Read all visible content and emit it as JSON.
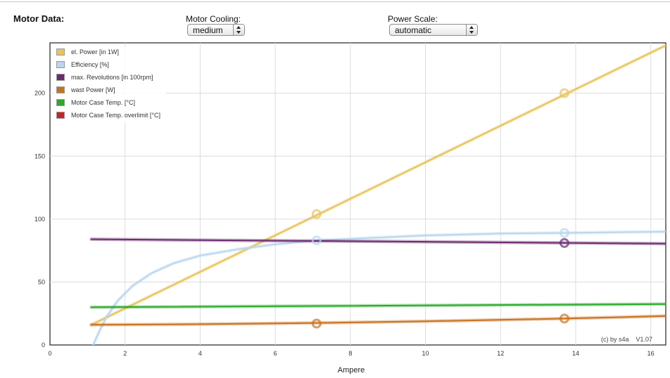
{
  "header": {
    "title": "Motor Data:"
  },
  "controls": {
    "cooling": {
      "label": "Motor Cooling:",
      "value": "medium"
    },
    "power_scale": {
      "label": "Power Scale:",
      "value": "automatic"
    }
  },
  "credit": {
    "author": "(c) by s4a",
    "version": "V1.07"
  },
  "chart_data": {
    "type": "line",
    "xlabel": "Ampere",
    "ylabel": "",
    "xlim": [
      0,
      16.4
    ],
    "ylim": [
      0,
      240
    ],
    "xticks": [
      0,
      2,
      4,
      6,
      8,
      10,
      12,
      14,
      16
    ],
    "yticks": [
      0,
      50,
      100,
      150,
      200
    ],
    "grid": true,
    "legend_position": "top-left",
    "series": [
      {
        "name": "el. Power [in 1W]",
        "color": "#e8c35a",
        "x": [
          1.1,
          16.4
        ],
        "y": [
          16,
          238
        ],
        "markers": [
          [
            7.1,
            104
          ],
          [
            13.7,
            200
          ]
        ]
      },
      {
        "name": "Efficiency [%]",
        "color": "#b9d6ee",
        "x": [
          1.15,
          1.3,
          1.5,
          1.8,
          2.2,
          2.7,
          3.3,
          4.0,
          5.0,
          6.0,
          7.1,
          8.5,
          10.0,
          12.0,
          13.7,
          15.0,
          16.4
        ],
        "y": [
          0,
          10,
          22,
          35,
          47,
          57,
          65,
          71,
          76,
          80,
          83,
          85,
          87,
          88.5,
          89,
          89.5,
          90
        ],
        "markers": [
          [
            7.1,
            83
          ],
          [
            13.7,
            89
          ]
        ]
      },
      {
        "name": "max. Revolutions [in 100rpm]",
        "color": "#6b2b6e",
        "x": [
          1.1,
          16.4
        ],
        "y": [
          84,
          80.5
        ],
        "markers": [
          [
            13.7,
            81
          ]
        ]
      },
      {
        "name": "wast Power [W]",
        "color": "#c8721f",
        "x": [
          1.1,
          4.0,
          7.1,
          10.0,
          13.7,
          16.4
        ],
        "y": [
          16,
          16.5,
          17.5,
          18.8,
          21,
          23
        ],
        "markers": [
          [
            7.1,
            17
          ],
          [
            13.7,
            21
          ]
        ]
      },
      {
        "name": "Motor Case Temp. [°C]",
        "color": "#2aaa2a",
        "x": [
          1.1,
          16.4
        ],
        "y": [
          30,
          32.5
        ],
        "markers": []
      },
      {
        "name": "Motor Case Temp. overlimit [°C]",
        "color": "#cc2222",
        "x": [],
        "y": [],
        "markers": []
      }
    ]
  }
}
